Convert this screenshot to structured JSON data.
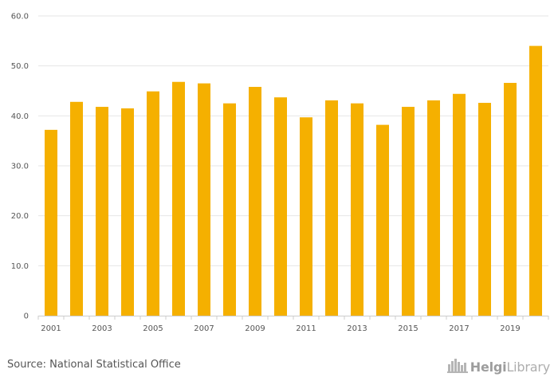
{
  "chart_data": {
    "type": "bar",
    "categories": [
      "2001",
      "2002",
      "2003",
      "2004",
      "2005",
      "2006",
      "2007",
      "2008",
      "2009",
      "2010",
      "2011",
      "2012",
      "2013",
      "2014",
      "2015",
      "2016",
      "2017",
      "2018",
      "2019",
      "2020"
    ],
    "x_tick_labels": [
      "2001",
      "2003",
      "2005",
      "2007",
      "2009",
      "2011",
      "2013",
      "2015",
      "2017",
      "2019"
    ],
    "values": [
      37.2,
      42.8,
      41.8,
      41.5,
      44.9,
      46.8,
      46.5,
      42.5,
      45.8,
      43.7,
      39.7,
      43.1,
      42.5,
      38.2,
      41.8,
      43.1,
      44.4,
      42.6,
      46.6,
      54.0
    ],
    "y_ticks": [
      "0",
      "10.0",
      "20.0",
      "30.0",
      "40.0",
      "50.0",
      "60.0"
    ],
    "ylim": [
      0,
      60
    ],
    "grid": true,
    "bar_color": "#f5b000",
    "title": "",
    "xlabel": "",
    "ylabel": ""
  },
  "footer": {
    "source": "Source: National Statistical Office",
    "logo_bold": "Helgi",
    "logo_regular": "Library",
    "logo_icon": "city-skyline-icon"
  }
}
